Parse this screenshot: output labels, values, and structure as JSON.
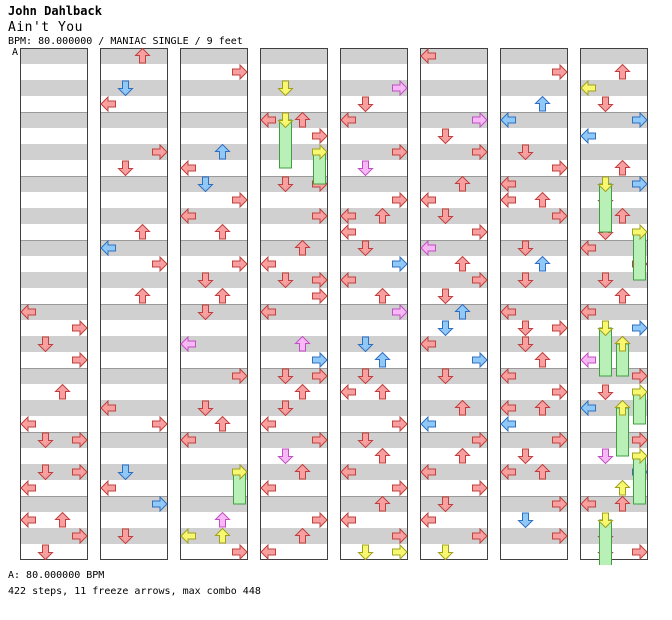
{
  "song": {
    "artist": "John Dahlback",
    "title": "Ain't You",
    "info": "BPM: 80.000000 / MANIAC SINGLE / 9 feet"
  },
  "bpm_marker": "A",
  "footer": {
    "bpm_line": "A: 80.000000 BPM",
    "stats_line": "422 steps, 11 freeze arrows, max combo 448"
  },
  "colors": {
    "band_gray": "#d0d0d0",
    "border": "#404040",
    "quarter_note": "#f8a0a0",
    "eighth_note": "#90c8f8",
    "sixteenth_note": "#f8b8f8",
    "twelfth_note": "#f8f870",
    "freeze_body": "#b8f0b8"
  },
  "icons": {
    "left": "arrow-left-icon",
    "down": "arrow-down-icon",
    "up": "arrow-up-icon",
    "right": "arrow-right-icon"
  },
  "chart_data": {
    "type": "step-chart",
    "columns": 8,
    "beats_per_column": 32,
    "lane_order": [
      "left",
      "down",
      "up",
      "right"
    ],
    "lane_pattern": [
      0,
      3,
      1,
      3,
      2,
      0,
      1,
      3,
      0,
      2,
      3,
      1,
      2,
      1,
      0,
      3,
      1,
      2,
      0,
      3,
      2,
      0,
      3,
      1
    ],
    "notes": "422 steps, 11 freeze arrows, max combo 448"
  }
}
